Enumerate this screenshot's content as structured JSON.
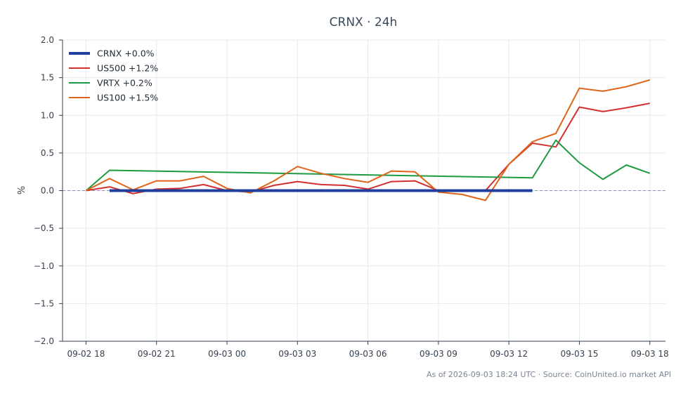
{
  "chart_data": {
    "type": "line",
    "title": "CRNX · 24h",
    "xlabel": "",
    "ylabel": "%",
    "ylim": [
      -2.0,
      2.0
    ],
    "xlim": [
      "2026-09-02 17:00",
      "2026-09-03 18:40"
    ],
    "yticks": [
      -2.0,
      -1.5,
      -1.0,
      -0.5,
      0.0,
      0.5,
      1.0,
      1.5,
      2.0
    ],
    "xticks": [
      {
        "t": "2026-09-02 18:00",
        "label": "09-02 18"
      },
      {
        "t": "2026-09-02 21:00",
        "label": "09-02 21"
      },
      {
        "t": "2026-09-03 00:00",
        "label": "09-03 00"
      },
      {
        "t": "2026-09-03 03:00",
        "label": "09-03 03"
      },
      {
        "t": "2026-09-03 06:00",
        "label": "09-03 06"
      },
      {
        "t": "2026-09-03 09:00",
        "label": "09-03 09"
      },
      {
        "t": "2026-09-03 12:00",
        "label": "09-03 12"
      },
      {
        "t": "2026-09-03 15:00",
        "label": "09-03 15"
      },
      {
        "t": "2026-09-03 18:00",
        "label": "09-03 18"
      }
    ],
    "grid": true,
    "zero_line": true,
    "legend_position": "top-left",
    "series": [
      {
        "name": "CRNX +0.0%",
        "color": "#1f3fa0",
        "emphasis": true,
        "points": [
          [
            "2026-09-02 19:00",
            0.0
          ],
          [
            "2026-09-03 13:00",
            0.0
          ]
        ]
      },
      {
        "name": "US500 +1.2%",
        "color": "#d2302f",
        "points": [
          [
            "2026-09-02 18:00",
            0.0
          ],
          [
            "2026-09-02 19:00",
            0.05
          ],
          [
            "2026-09-02 20:00",
            -0.04
          ],
          [
            "2026-09-02 21:00",
            0.02
          ],
          [
            "2026-09-02 22:00",
            0.03
          ],
          [
            "2026-09-02 23:00",
            0.08
          ],
          [
            "2026-09-03 00:00",
            0.0
          ],
          [
            "2026-09-03 01:00",
            -0.02
          ],
          [
            "2026-09-03 02:00",
            0.07
          ],
          [
            "2026-09-03 03:00",
            0.12
          ],
          [
            "2026-09-03 04:00",
            0.08
          ],
          [
            "2026-09-03 05:00",
            0.07
          ],
          [
            "2026-09-03 06:00",
            0.02
          ],
          [
            "2026-09-03 07:00",
            0.12
          ],
          [
            "2026-09-03 08:00",
            0.13
          ],
          [
            "2026-09-03 09:00",
            0.0
          ],
          [
            "2026-09-03 10:00",
            0.0
          ],
          [
            "2026-09-03 11:00",
            0.0
          ],
          [
            "2026-09-03 12:00",
            0.35
          ],
          [
            "2026-09-03 13:00",
            0.63
          ],
          [
            "2026-09-03 14:00",
            0.58
          ],
          [
            "2026-09-03 15:00",
            1.11
          ],
          [
            "2026-09-03 16:00",
            1.05
          ],
          [
            "2026-09-03 17:00",
            1.1
          ],
          [
            "2026-09-03 18:00",
            1.16
          ]
        ]
      },
      {
        "name": "VRTX +0.2%",
        "color": "#1e9a41",
        "points": [
          [
            "2026-09-02 18:00",
            0.0
          ],
          [
            "2026-09-02 19:00",
            0.27
          ],
          [
            "2026-09-03 13:00",
            0.17
          ],
          [
            "2026-09-03 14:00",
            0.67
          ],
          [
            "2026-09-03 15:00",
            0.37
          ],
          [
            "2026-09-03 16:00",
            0.15
          ],
          [
            "2026-09-03 17:00",
            0.34
          ],
          [
            "2026-09-03 18:00",
            0.23
          ]
        ]
      },
      {
        "name": "US100 +1.5%",
        "color": "#e06418",
        "points": [
          [
            "2026-09-02 18:00",
            0.0
          ],
          [
            "2026-09-02 19:00",
            0.16
          ],
          [
            "2026-09-02 20:00",
            0.01
          ],
          [
            "2026-09-02 21:00",
            0.13
          ],
          [
            "2026-09-02 22:00",
            0.13
          ],
          [
            "2026-09-02 23:00",
            0.19
          ],
          [
            "2026-09-03 00:00",
            0.03
          ],
          [
            "2026-09-03 01:00",
            -0.03
          ],
          [
            "2026-09-03 02:00",
            0.13
          ],
          [
            "2026-09-03 03:00",
            0.32
          ],
          [
            "2026-09-03 04:00",
            0.23
          ],
          [
            "2026-09-03 05:00",
            0.16
          ],
          [
            "2026-09-03 06:00",
            0.11
          ],
          [
            "2026-09-03 07:00",
            0.26
          ],
          [
            "2026-09-03 08:00",
            0.25
          ],
          [
            "2026-09-03 09:00",
            -0.02
          ],
          [
            "2026-09-03 10:00",
            -0.05
          ],
          [
            "2026-09-03 11:00",
            -0.13
          ],
          [
            "2026-09-03 12:00",
            0.35
          ],
          [
            "2026-09-03 13:00",
            0.65
          ],
          [
            "2026-09-03 14:00",
            0.76
          ],
          [
            "2026-09-03 15:00",
            1.36
          ],
          [
            "2026-09-03 16:00",
            1.32
          ],
          [
            "2026-09-03 17:00",
            1.38
          ],
          [
            "2026-09-03 18:00",
            1.47
          ]
        ]
      }
    ],
    "footer": "As of 2026-09-03 18:24 UTC · Source: CoinUnited.io market API"
  }
}
